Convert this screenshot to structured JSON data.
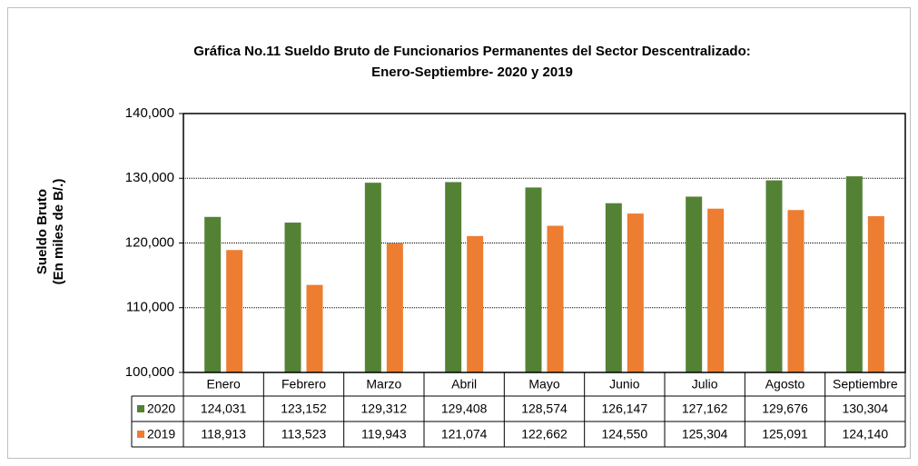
{
  "chart_data": {
    "type": "bar",
    "title": [
      "Gráfica No.11 Sueldo Bruto de Funcionarios Permanentes del Sector Descentralizado:",
      "Enero-Septiembre- 2020 y 2019"
    ],
    "ylabel": [
      "Sueldo Bruto",
      "(En miles de B/.)"
    ],
    "categories": [
      "Enero",
      "Febrero",
      "Marzo",
      "Abril",
      "Mayo",
      "Junio",
      "Julio",
      "Agosto",
      "Septiembre"
    ],
    "series": [
      {
        "name": "2020",
        "color": "#548235",
        "values": [
          124031,
          123152,
          129312,
          129408,
          128574,
          126147,
          127162,
          129676,
          130304
        ],
        "value_labels": [
          "124,031",
          "123,152",
          "129,312",
          "129,408",
          "128,574",
          "126,147",
          "127,162",
          "129,676",
          "130,304"
        ]
      },
      {
        "name": "2019",
        "color": "#ed7d31",
        "values": [
          118913,
          113523,
          119943,
          121074,
          122662,
          124550,
          125304,
          125091,
          124140
        ],
        "value_labels": [
          "118,913",
          "113,523",
          "119,943",
          "121,074",
          "122,662",
          "124,550",
          "125,304",
          "125,091",
          "124,140"
        ]
      }
    ],
    "ylim": [
      100000,
      140000
    ],
    "yticks": [
      {
        "value": 100000,
        "label": "100,000"
      },
      {
        "value": 110000,
        "label": "110,000"
      },
      {
        "value": 120000,
        "label": "120,000"
      },
      {
        "value": 130000,
        "label": "130,000"
      },
      {
        "value": 140000,
        "label": "140,000"
      }
    ],
    "grid": true
  }
}
